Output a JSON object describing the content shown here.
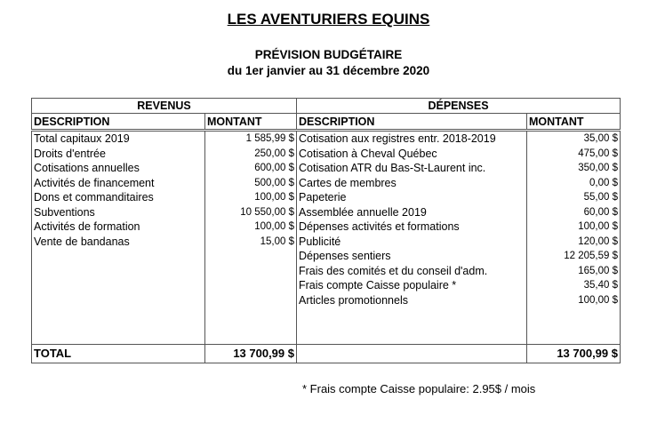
{
  "title": "LES AVENTURIERS EQUINS",
  "subtitle": "PRÉVISION BUDGÉTAIRE",
  "period": "du 1er janvier au 31 décembre 2020",
  "revenus": {
    "label": "REVENUS",
    "col_desc": "DESCRIPTION",
    "col_amount": "MONTANT",
    "rows": [
      {
        "desc": "Total capitaux 2019",
        "amount": "1 585,99 $"
      },
      {
        "desc": "Droits d'entrée",
        "amount": "250,00 $"
      },
      {
        "desc": "Cotisations annuelles",
        "amount": "600,00 $"
      },
      {
        "desc": "Activités de financement",
        "amount": "500,00 $"
      },
      {
        "desc": "Dons et commanditaires",
        "amount": "100,00 $"
      },
      {
        "desc": "Subventions",
        "amount": "10 550,00 $"
      },
      {
        "desc": "Activités de formation",
        "amount": "100,00 $"
      },
      {
        "desc": "Vente de bandanas",
        "amount": "15,00 $"
      }
    ],
    "total_label": "TOTAL",
    "total": "13 700,99 $"
  },
  "depenses": {
    "label": "DÉPENSES",
    "col_desc": "DESCRIPTION",
    "col_amount": "MONTANT",
    "rows": [
      {
        "desc": "Cotisation aux registres entr. 2018-2019",
        "amount": "35,00 $"
      },
      {
        "desc": "Cotisation à Cheval Québec",
        "amount": "475,00 $"
      },
      {
        "desc": "Cotisation ATR du Bas-St-Laurent inc.",
        "amount": "350,00 $"
      },
      {
        "desc": "Cartes de membres",
        "amount": "0,00 $"
      },
      {
        "desc": "Papeterie",
        "amount": "55,00 $"
      },
      {
        "desc": "Assemblée annuelle 2019",
        "amount": "60,00 $"
      },
      {
        "desc": "Dépenses activités et formations",
        "amount": "100,00 $"
      },
      {
        "desc": "Publicité",
        "amount": "120,00 $"
      },
      {
        "desc": "Dépenses sentiers",
        "amount": "12 205,59 $"
      },
      {
        "desc": "Frais des comités et du conseil d'adm.",
        "amount": "165,00 $"
      },
      {
        "desc": "Frais compte Caisse populaire *",
        "amount": "35,40 $"
      },
      {
        "desc": "Articles promotionnels",
        "amount": "100,00 $"
      }
    ],
    "total": "13 700,99 $"
  },
  "footnote": "* Frais compte Caisse populaire: 2.95$ / mois"
}
